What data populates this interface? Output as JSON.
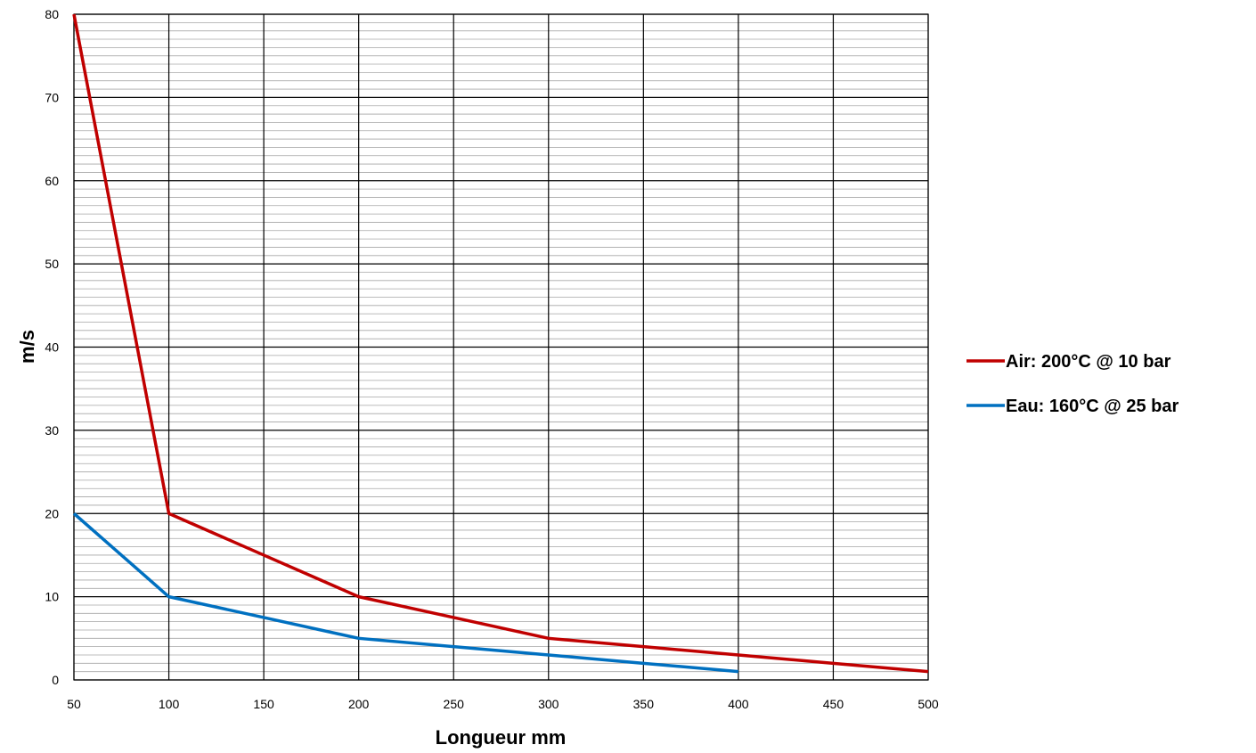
{
  "chart_data": {
    "type": "line",
    "title": "",
    "xlabel": "Longueur mm",
    "ylabel": "m/s",
    "xlim": [
      50,
      500
    ],
    "ylim": [
      0,
      80
    ],
    "x_ticks": [
      50,
      100,
      150,
      200,
      250,
      300,
      350,
      400,
      450,
      500
    ],
    "y_ticks": [
      0,
      10,
      20,
      30,
      40,
      50,
      60,
      70,
      80
    ],
    "y_minor_step": 1,
    "grid": true,
    "legend_position": "right",
    "series": [
      {
        "name": "Air: 200°C @ 10 bar",
        "color": "#C00000",
        "x": [
          50,
          100,
          150,
          200,
          250,
          300,
          350,
          400,
          450,
          500
        ],
        "y": [
          80,
          20,
          15,
          10,
          7.5,
          5,
          4,
          3,
          2,
          1
        ]
      },
      {
        "name": "Eau: 160°C @ 25 bar",
        "color": "#0070C0",
        "x": [
          50,
          100,
          150,
          200,
          250,
          300,
          350,
          400
        ],
        "y": [
          20,
          10,
          7.5,
          5,
          4,
          3,
          2,
          1
        ]
      }
    ]
  }
}
